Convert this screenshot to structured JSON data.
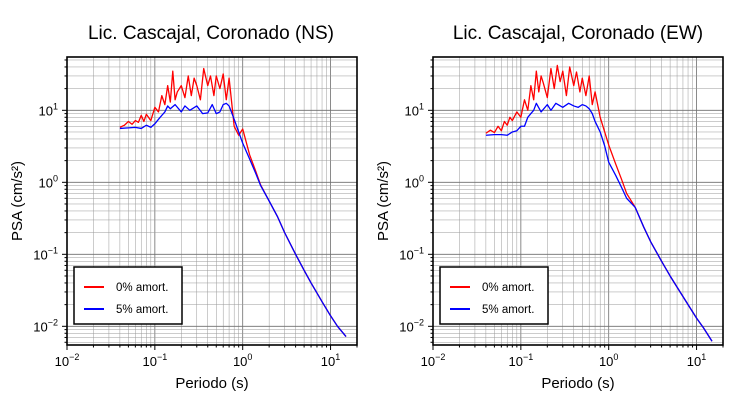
{
  "chart_data": [
    {
      "type": "line",
      "title": "Lic. Cascajal, Coronado (NS)",
      "xlabel": "Periodo (s)",
      "ylabel": "PSA (cm/s²)",
      "xscale": "log",
      "yscale": "log",
      "xlim": [
        0.01,
        20
      ],
      "ylim": [
        0.0055,
        55
      ],
      "grid": true,
      "legend_position": "bottom-left",
      "x_ticks": [
        {
          "value": 0.01,
          "base": "10",
          "exp": "−2"
        },
        {
          "value": 0.1,
          "base": "10",
          "exp": "−1"
        },
        {
          "value": 1,
          "base": "10",
          "exp": "0"
        },
        {
          "value": 10,
          "base": "10",
          "exp": "1"
        }
      ],
      "y_ticks": [
        {
          "value": 0.01,
          "base": "10",
          "exp": "−2"
        },
        {
          "value": 0.1,
          "base": "10",
          "exp": "−1"
        },
        {
          "value": 1,
          "base": "10",
          "exp": "0"
        },
        {
          "value": 10,
          "base": "10",
          "exp": "1"
        }
      ],
      "series": [
        {
          "name": "0% amort.",
          "color": "#ff0000",
          "x": [
            0.04,
            0.045,
            0.05,
            0.055,
            0.06,
            0.065,
            0.07,
            0.075,
            0.08,
            0.09,
            0.1,
            0.11,
            0.12,
            0.13,
            0.14,
            0.15,
            0.16,
            0.17,
            0.18,
            0.2,
            0.22,
            0.24,
            0.26,
            0.28,
            0.3,
            0.33,
            0.36,
            0.4,
            0.43,
            0.47,
            0.5,
            0.55,
            0.6,
            0.65,
            0.7,
            0.8,
            0.9,
            1.0,
            1.2,
            1.4,
            1.6,
            2.0,
            2.5,
            3.0,
            4.0,
            5.0,
            6.0,
            8.0,
            10.0,
            12.0,
            15.0
          ],
          "y": [
            5.8,
            6.2,
            7.0,
            6.4,
            7.2,
            6.8,
            8.5,
            7.0,
            8.8,
            7.2,
            11.0,
            9.5,
            16.0,
            12.0,
            22.0,
            13.0,
            35.0,
            14.0,
            18.0,
            22.0,
            15.0,
            30.0,
            16.0,
            28.0,
            22.0,
            14.0,
            38.0,
            22.0,
            30.0,
            16.0,
            30.0,
            20.0,
            32.0,
            14.0,
            28.0,
            6.0,
            4.5,
            5.5,
            2.4,
            1.45,
            0.92,
            0.55,
            0.33,
            0.2,
            0.1,
            0.06,
            0.04,
            0.022,
            0.014,
            0.01,
            0.0072
          ]
        },
        {
          "name": "5% amort.",
          "color": "#0000ff",
          "x": [
            0.04,
            0.05,
            0.06,
            0.07,
            0.08,
            0.09,
            0.1,
            0.11,
            0.12,
            0.13,
            0.14,
            0.15,
            0.17,
            0.2,
            0.22,
            0.25,
            0.3,
            0.35,
            0.4,
            0.45,
            0.5,
            0.55,
            0.6,
            0.65,
            0.7,
            0.8,
            0.9,
            1.0,
            1.2,
            1.4,
            1.6,
            2.0,
            2.5,
            3.0,
            4.0,
            5.0,
            6.0,
            8.0,
            10.0,
            12.0,
            15.0
          ],
          "y": [
            5.6,
            5.7,
            5.8,
            5.6,
            6.2,
            5.8,
            6.5,
            7.5,
            8.5,
            9.5,
            11.5,
            10.5,
            12.0,
            9.5,
            11.5,
            10.0,
            11.5,
            9.0,
            9.2,
            12.0,
            9.0,
            9.5,
            12.0,
            12.5,
            11.5,
            7.5,
            5.0,
            3.5,
            2.1,
            1.35,
            0.9,
            0.55,
            0.33,
            0.2,
            0.1,
            0.06,
            0.04,
            0.022,
            0.014,
            0.01,
            0.0072
          ]
        }
      ]
    },
    {
      "type": "line",
      "title": "Lic. Cascajal, Coronado (EW)",
      "xlabel": "Periodo (s)",
      "ylabel": "PSA (cm/s²)",
      "xscale": "log",
      "yscale": "log",
      "xlim": [
        0.01,
        20
      ],
      "ylim": [
        0.0055,
        55
      ],
      "grid": true,
      "legend_position": "bottom-left",
      "x_ticks": [
        {
          "value": 0.01,
          "base": "10",
          "exp": "−2"
        },
        {
          "value": 0.1,
          "base": "10",
          "exp": "−1"
        },
        {
          "value": 1,
          "base": "10",
          "exp": "0"
        },
        {
          "value": 10,
          "base": "10",
          "exp": "1"
        }
      ],
      "y_ticks": [
        {
          "value": 0.01,
          "base": "10",
          "exp": "−2"
        },
        {
          "value": 0.1,
          "base": "10",
          "exp": "−1"
        },
        {
          "value": 1,
          "base": "10",
          "exp": "0"
        },
        {
          "value": 10,
          "base": "10",
          "exp": "1"
        }
      ],
      "series": [
        {
          "name": "0% amort.",
          "color": "#ff0000",
          "x": [
            0.04,
            0.045,
            0.05,
            0.055,
            0.06,
            0.065,
            0.07,
            0.075,
            0.08,
            0.09,
            0.1,
            0.11,
            0.12,
            0.13,
            0.14,
            0.15,
            0.16,
            0.17,
            0.18,
            0.2,
            0.22,
            0.24,
            0.26,
            0.28,
            0.3,
            0.33,
            0.36,
            0.4,
            0.43,
            0.47,
            0.5,
            0.55,
            0.6,
            0.65,
            0.7,
            0.8,
            0.9,
            1.0,
            1.2,
            1.4,
            1.6,
            2.0,
            2.5,
            3.0,
            4.0,
            5.0,
            6.0,
            8.0,
            10.0,
            12.0,
            15.0
          ],
          "y": [
            4.8,
            5.3,
            4.9,
            6.0,
            5.2,
            7.0,
            6.2,
            8.0,
            7.2,
            9.5,
            8.0,
            14.0,
            10.0,
            22.0,
            14.0,
            35.0,
            18.0,
            30.0,
            24.0,
            15.0,
            38.0,
            20.0,
            42.0,
            25.0,
            35.0,
            16.0,
            40.0,
            22.0,
            34.0,
            18.0,
            28.0,
            16.0,
            30.0,
            12.0,
            18.0,
            8.0,
            5.0,
            3.3,
            1.8,
            1.1,
            0.7,
            0.45,
            0.24,
            0.15,
            0.08,
            0.05,
            0.035,
            0.02,
            0.013,
            0.0095,
            0.0062
          ]
        },
        {
          "name": "5% amort.",
          "color": "#0000ff",
          "x": [
            0.04,
            0.05,
            0.06,
            0.07,
            0.08,
            0.09,
            0.1,
            0.11,
            0.12,
            0.13,
            0.14,
            0.15,
            0.17,
            0.2,
            0.22,
            0.25,
            0.3,
            0.35,
            0.4,
            0.45,
            0.5,
            0.55,
            0.6,
            0.65,
            0.7,
            0.8,
            0.9,
            1.0,
            1.2,
            1.4,
            1.6,
            2.0,
            2.5,
            3.0,
            4.0,
            5.0,
            6.0,
            8.0,
            10.0,
            12.0,
            15.0
          ],
          "y": [
            4.5,
            4.6,
            4.6,
            4.5,
            5.0,
            5.2,
            6.0,
            6.0,
            8.0,
            9.0,
            10.0,
            12.5,
            9.5,
            12.0,
            10.0,
            12.5,
            11.0,
            12.5,
            11.5,
            11.0,
            12.0,
            11.5,
            10.5,
            9.0,
            7.0,
            5.0,
            3.2,
            1.9,
            1.25,
            0.85,
            0.6,
            0.45,
            0.24,
            0.15,
            0.08,
            0.05,
            0.035,
            0.02,
            0.013,
            0.0095,
            0.0062
          ]
        }
      ]
    }
  ]
}
